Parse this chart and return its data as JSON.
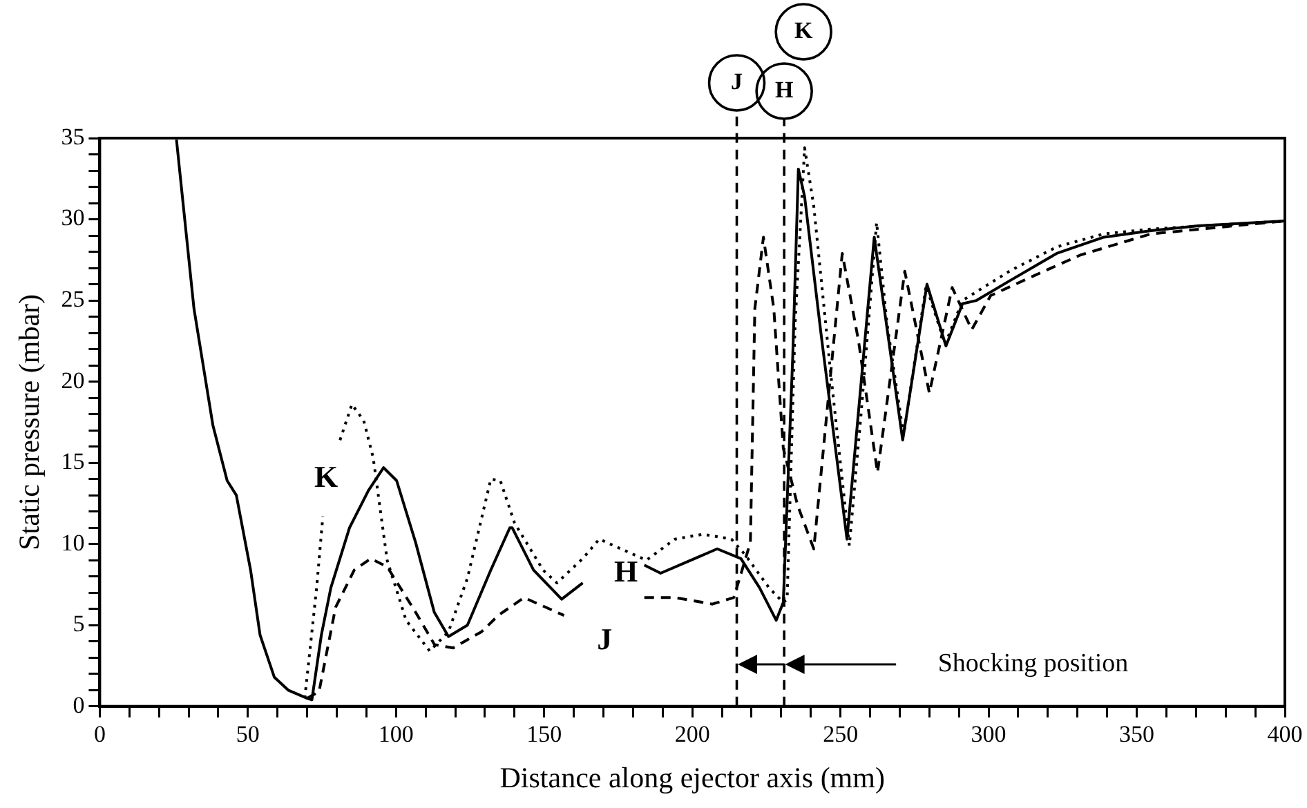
{
  "chart_data": {
    "type": "line",
    "xlabel": "Distance along ejector axis (mm)",
    "ylabel": "Static pressure (mbar)",
    "xlim": [
      0,
      400
    ],
    "ylim": [
      0,
      35
    ],
    "xticks": [
      0,
      {
        "value": 10,
        "label": null
      },
      {
        "value": 20,
        "label": null
      },
      {
        "value": 30,
        "label": null
      },
      {
        "value": 40,
        "label": null
      },
      50,
      {
        "value": 60,
        "label": null
      },
      {
        "value": 70,
        "label": null
      },
      {
        "value": 80,
        "label": null
      },
      {
        "value": 90,
        "label": null
      },
      100,
      {
        "value": 110,
        "label": null
      },
      {
        "value": 120,
        "label": null
      },
      {
        "value": 130,
        "label": null
      },
      {
        "value": 140,
        "label": null
      },
      150,
      {
        "value": 160,
        "label": null
      },
      {
        "value": 170,
        "label": null
      },
      {
        "value": 180,
        "label": null
      },
      {
        "value": 190,
        "label": null
      },
      200,
      {
        "value": 210,
        "label": null
      },
      {
        "value": 220,
        "label": null
      },
      {
        "value": 230,
        "label": null
      },
      {
        "value": 240,
        "label": null
      },
      250,
      {
        "value": 260,
        "label": null
      },
      {
        "value": 270,
        "label": null
      },
      {
        "value": 280,
        "label": null
      },
      {
        "value": 290,
        "label": null
      },
      300,
      {
        "value": 310,
        "label": null
      },
      {
        "value": 320,
        "label": null
      },
      {
        "value": 330,
        "label": null
      },
      {
        "value": 340,
        "label": null
      },
      350,
      {
        "value": 360,
        "label": null
      },
      {
        "value": 370,
        "label": null
      },
      {
        "value": 380,
        "label": null
      },
      {
        "value": 390,
        "label": null
      },
      400
    ],
    "yticks": [
      0,
      {
        "value": 1,
        "label": null
      },
      {
        "value": 2,
        "label": null
      },
      {
        "value": 3,
        "label": null
      },
      {
        "value": 4,
        "label": null
      },
      5,
      {
        "value": 6,
        "label": null
      },
      {
        "value": 7,
        "label": null
      },
      {
        "value": 8,
        "label": null
      },
      {
        "value": 9,
        "label": null
      },
      10,
      {
        "value": 11,
        "label": null
      },
      {
        "value": 12,
        "label": null
      },
      {
        "value": 13,
        "label": null
      },
      {
        "value": 14,
        "label": null
      },
      15,
      {
        "value": 16,
        "label": null
      },
      {
        "value": 17,
        "label": null
      },
      {
        "value": 18,
        "label": null
      },
      {
        "value": 19,
        "label": null
      },
      20,
      {
        "value": 21,
        "label": null
      },
      {
        "value": 22,
        "label": null
      },
      {
        "value": 23,
        "label": null
      },
      {
        "value": 24,
        "label": null
      },
      25,
      {
        "value": 26,
        "label": null
      },
      {
        "value": 27,
        "label": null
      },
      {
        "value": 28,
        "label": null
      },
      {
        "value": 29,
        "label": null
      },
      30,
      {
        "value": 31,
        "label": null
      },
      {
        "value": 32,
        "label": null
      },
      {
        "value": 33,
        "label": null
      },
      {
        "value": 34,
        "label": null
      },
      35
    ],
    "grid": false,
    "legend": false,
    "series": [
      {
        "color": "#000000",
        "line_style": "solid",
        "x": [
          25.9,
          31.8,
          38.2,
          43,
          46.1,
          50.9,
          54.1,
          58.9,
          63.6,
          70,
          71.6,
          74.8,
          78,
          84.3,
          90.7,
          95.8,
          100.2,
          106.6,
          112.9,
          117.7,
          124.1,
          132,
          138.4,
          139.2,
          146.4,
          155.9,
          163,
          173,
          183.8,
          189.3,
          208.4,
          216.4,
          222.7,
          228.3,
          230.7,
          233.9,
          235.8,
          237.9,
          243.4,
          252.2,
          261.4,
          271,
          279.2,
          285.6,
          291.2,
          295.9,
          307,
          323,
          338.9,
          354.8,
          370.7,
          400
        ],
        "values": [
          34.9,
          24.5,
          17.3,
          13.9,
          13,
          8.4,
          4.4,
          1.8,
          1,
          0.5,
          0.4,
          4.4,
          7.3,
          11,
          13.3,
          14.7,
          13.9,
          10.1,
          5.8,
          4.3,
          5,
          8.4,
          11,
          11,
          8.4,
          6.6,
          7.6,
          null,
          8.7,
          8.2,
          9.7,
          9.1,
          7.3,
          5.3,
          6.4,
          21.6,
          33.1,
          31.4,
          23,
          10.3,
          28.9,
          16.4,
          26,
          22.2,
          24.8,
          25,
          26.2,
          27.9,
          28.9,
          29.3,
          29.6,
          29.9
        ]
      },
      {
        "color": "#000000",
        "line_style": "dashed",
        "x": [
          70,
          74,
          79.6,
          85.9,
          91.5,
          97,
          106.6,
          113,
          119.3,
          128.9,
          134.5,
          143.2,
          156.7,
          170,
          183.8,
          194.1,
          206.8,
          214,
          219.6,
          221.1,
          224,
          227.5,
          230.7,
          235.5,
          241,
          250.6,
          256.1,
          262.5,
          271.7,
          280,
          287.7,
          294.3,
          300.7,
          315,
          331,
          354.8,
          400
        ],
        "values": [
          0.5,
          0.9,
          6.1,
          8.4,
          9.1,
          8.6,
          5.8,
          3.8,
          3.6,
          4.6,
          5.6,
          6.7,
          5.6,
          null,
          6.7,
          6.7,
          6.3,
          6.7,
          10.1,
          24.5,
          28.9,
          24.5,
          15.9,
          12.4,
          9.7,
          27.9,
          22.5,
          14.4,
          26.8,
          19.3,
          25.8,
          23.2,
          25.3,
          26.5,
          27.8,
          29.1,
          29.9
        ]
      },
      {
        "color": "#000000",
        "line_style": "dotted",
        "x": [
          69.2,
          73.2,
          75.3,
          78,
          81.1,
          85.1,
          89.1,
          92.3,
          97,
          103.4,
          111.4,
          117.7,
          124.1,
          132,
          135.2,
          140,
          149.6,
          154.3,
          163,
          168.6,
          184.5,
          194.1,
          203.6,
          213.2,
          218,
          225.9,
          230.7,
          232,
          234.7,
          237.9,
          241,
          246.6,
          253,
          256.9,
          262.2,
          265.7,
          271.3,
          278.9,
          285.3,
          291.2,
          307,
          323,
          338.9,
          354.8,
          400
        ],
        "values": [
          0.5,
          7.3,
          11.7,
          null,
          16.4,
          18.6,
          17.6,
          15.3,
          9,
          5.3,
          3.4,
          4.6,
          7.9,
          14,
          13.9,
          11.3,
          8.4,
          7.6,
          9.1,
          10.3,
          9,
          10.3,
          10.6,
          10.3,
          9.3,
          7.3,
          6.4,
          6.6,
          23.6,
          34.4,
          30.8,
          20.7,
          9.9,
          17.9,
          29.8,
          23.6,
          16.7,
          25.9,
          22.3,
          25,
          26.8,
          28.3,
          29.1,
          29.4,
          29.9
        ]
      }
    ],
    "ref_lines": [
      {
        "axis": "x",
        "value": 215,
        "label": "J",
        "line_style": "dashed"
      },
      {
        "axis": "x",
        "value": 231,
        "label": "H",
        "line_style": "dashed"
      }
    ],
    "annotations": [
      "K",
      "H",
      "J",
      "Shocking position",
      "K"
    ]
  }
}
